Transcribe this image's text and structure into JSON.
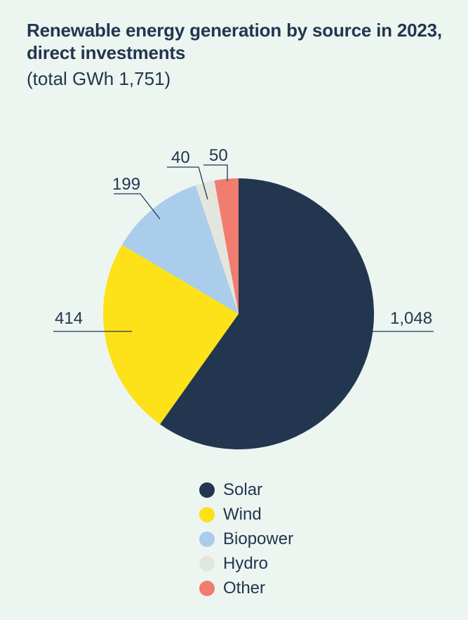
{
  "chart_data": {
    "type": "pie",
    "title": "Renewable energy generation by source in 2023, direct investments",
    "subtitle": "(total GWh 1,751)",
    "legend_position": "bottom",
    "slices": [
      {
        "name": "Solar",
        "value": 1048,
        "label": "1,048",
        "color": "#22364f"
      },
      {
        "name": "Wind",
        "value": 414,
        "label": "414",
        "color": "#fde119"
      },
      {
        "name": "Biopower",
        "value": 199,
        "label": "199",
        "color": "#a9cdea"
      },
      {
        "name": "Hydro",
        "value": 40,
        "label": "40",
        "color": "#e3e6dc"
      },
      {
        "name": "Other",
        "value": 50,
        "label": "50",
        "color": "#f17c70"
      }
    ]
  }
}
